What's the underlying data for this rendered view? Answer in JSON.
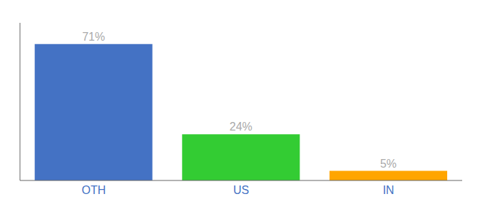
{
  "chart_data": {
    "type": "bar",
    "categories": [
      "OTH",
      "US",
      "IN"
    ],
    "values": [
      71,
      24,
      5
    ],
    "value_labels": [
      "71%",
      "24%",
      "5%"
    ],
    "colors": [
      "#4472C4",
      "#33CC33",
      "#FFA500"
    ],
    "ylim": [
      0,
      82
    ],
    "data_labels": true,
    "tick_labels": "x"
  }
}
